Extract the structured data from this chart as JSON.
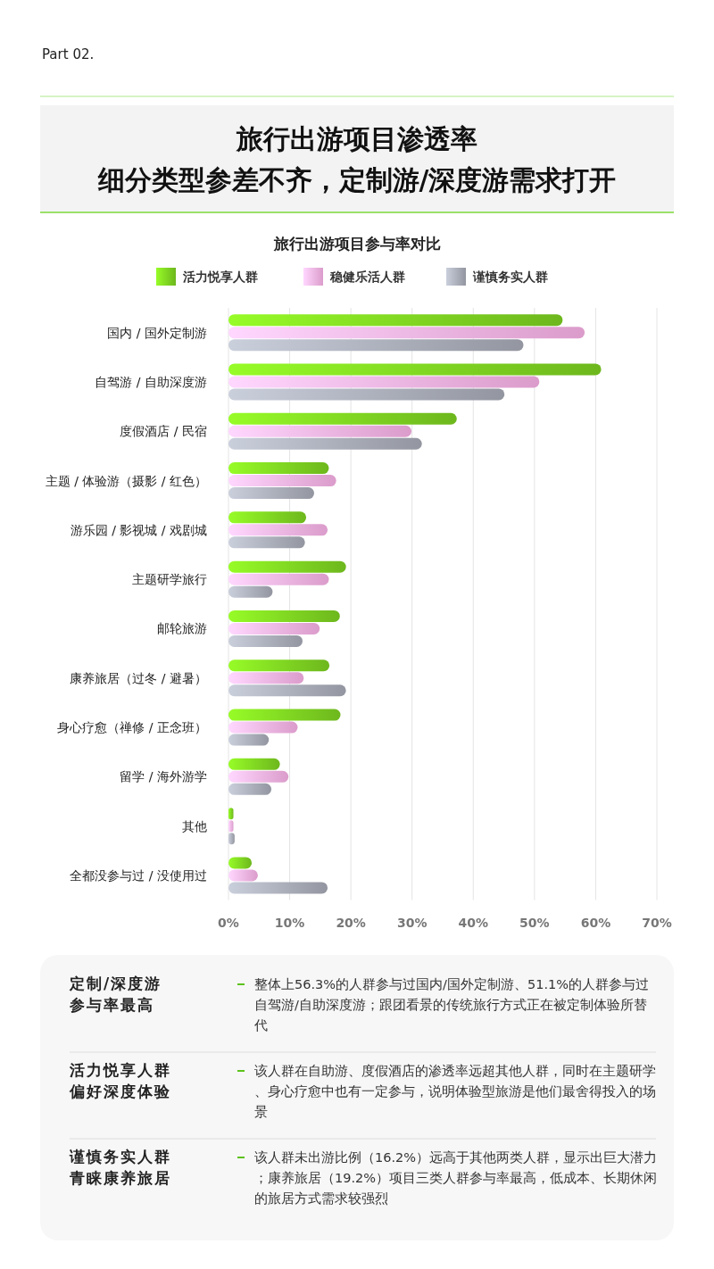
{
  "chart_data": {
    "type": "bar",
    "orientation": "horizontal",
    "title": "旅行出游项目渗透率",
    "subtitle": "细分类型参差不齐，定制游/深度游需求打开",
    "categories": [
      "国内 / 国外定制游",
      "自驾游 / 自助深度游",
      "度假酒店 / 民宿",
      "主题 / 体验游（摄影 / 红色）",
      "游乐园 / 影视城 / 戏剧城",
      "主题研学旅行",
      "邮轮旅游",
      "康养旅居（过冬 / 避暑）",
      "身心疗愈（禅修 / 正念班）",
      "留学 / 海外游学",
      "其他",
      "全都没参与过 / 没使用过"
    ],
    "series": [
      {
        "name": "活力悦享人群",
        "color": "#7ed321",
        "values": [
          54.6,
          60.9,
          37.3,
          16.4,
          12.7,
          19.2,
          18.2,
          16.5,
          18.3,
          8.4,
          0.8,
          3.8
        ]
      },
      {
        "name": "稳健乐活人群",
        "color": "#fdb4ea",
        "values": [
          58.2,
          50.8,
          29.9,
          17.6,
          16.2,
          16.4,
          14.9,
          12.3,
          11.3,
          9.8,
          0.8,
          4.8
        ]
      },
      {
        "name": "谨慎务实人群",
        "color": "#a9adb8",
        "values": [
          48.2,
          45.1,
          31.6,
          14.0,
          12.5,
          7.2,
          12.1,
          19.2,
          6.6,
          7.0,
          1.0,
          16.2
        ]
      }
    ],
    "xlim": [
      0,
      70
    ],
    "xticks": [
      {
        "value": 0,
        "label": "0%"
      },
      {
        "value": 10,
        "label": "10%"
      },
      {
        "value": 20,
        "label": "20%"
      },
      {
        "value": 30,
        "label": "30%"
      },
      {
        "value": 40,
        "label": "40%"
      },
      {
        "value": 50,
        "label": "50%"
      },
      {
        "value": 60,
        "label": "60%"
      },
      {
        "value": 70,
        "label": "70%"
      }
    ],
    "grid": "x",
    "legend": "top",
    "annotations": [
      "Part 02.",
      "旅行出游项目参与率对比",
      "定制/深度游参与率最高",
      "整体上56.3%的人群参与过国内/国外定制游、51.1%的人群参与过自驾游/自助深度游；跟团看景的传统旅行方式正在被定制体验所替代",
      "活力悦享人群偏好深度体验",
      "该人群在自助游、度假酒店的渗透率远超其他人群，同时在主题研学、身心疗愈中也有一定参与，说明体验型旅游是他们最舍得投入的场景",
      "谨慎务实人群青睐康养旅居",
      "该人群未出游比例（16.2%）远高于其他两类人群，显示出巨大潜力；康养旅居（19.2%）项目三类人群参与率最高，低成本、长期休闲的旅居方式需求较强烈"
    ]
  }
}
